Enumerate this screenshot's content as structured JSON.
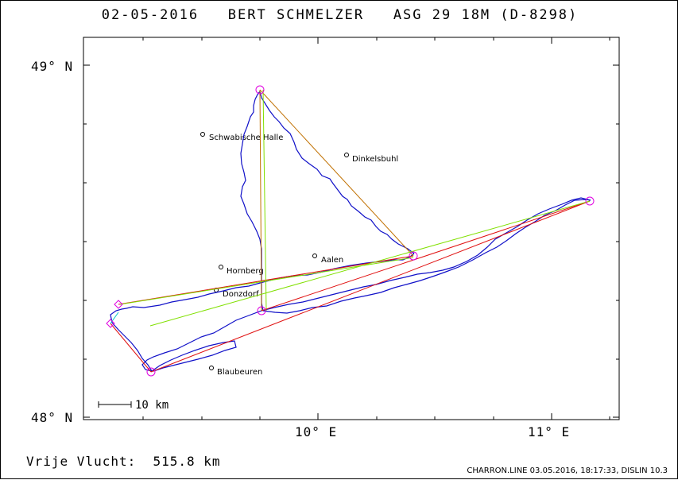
{
  "header": {
    "date": "02-05-2016",
    "pilot": "BERT SCHMELZER",
    "glider": "ASG 29 18M (D-8298)"
  },
  "axes": {
    "lat_labels": [
      "49° N",
      "48° N"
    ],
    "lon_labels": [
      "10° E",
      "11° E"
    ]
  },
  "scale": {
    "label": "10 km"
  },
  "towns": [
    {
      "name": "Schwabische Halle"
    },
    {
      "name": "Dinkelsbuhl"
    },
    {
      "name": "Aalen"
    },
    {
      "name": "Hornberg"
    },
    {
      "name": "Donzdorf"
    },
    {
      "name": "Blaubeuren"
    }
  ],
  "footer": {
    "result": "Vrije Vlucht:  515.8 km",
    "credit": "CHARRON.LINE 03.05.2016, 18:17:33, DISLIN 10.3"
  },
  "colors": {
    "track": "#1010c8",
    "task_red": "#e01010",
    "task_green": "#80e000",
    "task_orange": "#c07000",
    "turnpoint": "#e000e0",
    "cyan": "#00c8c8"
  }
}
